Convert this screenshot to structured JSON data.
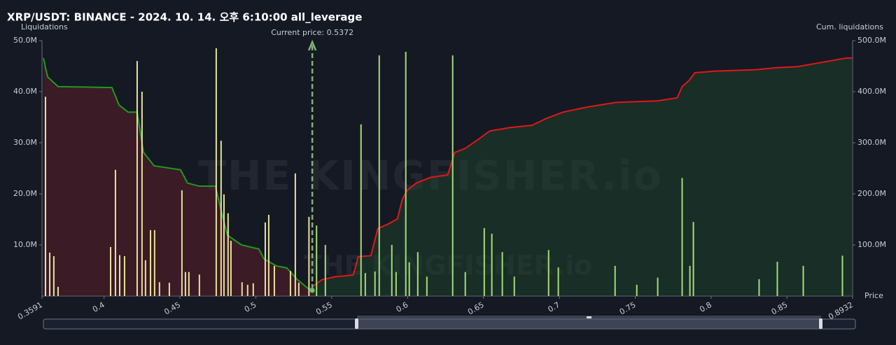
{
  "chart_data": {
    "type": "liquidation",
    "title": "XRP/USDT: BINANCE - 2024. 10. 14. 오후 6:10:00 all_leverage",
    "y_label": "Liquidations",
    "y2_label": "Cum. liquidations",
    "x_label": "Price",
    "watermark": "THE KINGFISHER.io",
    "current_price": {
      "value": 0.5372,
      "label": "Current price: 0.5372"
    },
    "xlim": [
      0.3591,
      0.8932
    ],
    "xticks": [
      0.3591,
      0.4,
      0.45,
      0.5,
      0.55,
      0.6,
      0.65,
      0.7,
      0.75,
      0.8,
      0.85,
      0.8932
    ],
    "ylim": [
      0,
      50000000
    ],
    "yticks": [
      {
        "value": 10000000,
        "label": "10.0M"
      },
      {
        "value": 20000000,
        "label": "20.0M"
      },
      {
        "value": 30000000,
        "label": "30.0M"
      },
      {
        "value": 40000000,
        "label": "40.0M"
      },
      {
        "value": 50000000,
        "label": "50.0M"
      }
    ],
    "y2lim": [
      0,
      500000000
    ],
    "y2ticks": [
      {
        "value": 100000000,
        "label": "100.0M"
      },
      {
        "value": 200000000,
        "label": "200.0M"
      },
      {
        "value": 300000000,
        "label": "300.0M"
      },
      {
        "value": 400000000,
        "label": "400.0M"
      },
      {
        "value": 500000000,
        "label": "500.0M"
      }
    ],
    "series": [
      {
        "kind": "bar",
        "color": "#e6e29c",
        "x": [
          0.3614,
          0.3642,
          0.3669,
          0.3697,
          0.4043,
          0.4075,
          0.4103,
          0.4135,
          0.4218,
          0.425,
          0.4273,
          0.4306,
          0.4333,
          0.4365,
          0.443,
          0.4513,
          0.4536,
          0.4559,
          0.4628,
          0.4739,
          0.4771,
          0.479,
          0.4817,
          0.4836,
          0.4909,
          0.4946,
          0.4983,
          0.5062,
          0.5085,
          0.5122,
          0.5228,
          0.526,
          0.5283,
          0.535
        ],
        "values": [
          39000000,
          8500000,
          7800000,
          1800000,
          9600000,
          24700000,
          8000000,
          7800000,
          46000000,
          40000000,
          7000000,
          12900000,
          12900000,
          2700000,
          2600000,
          20700000,
          4700000,
          4700000,
          4200000,
          48500000,
          30400000,
          19900000,
          16200000,
          10800000,
          2700000,
          2200000,
          2500000,
          14400000,
          15900000,
          5900000,
          4900000,
          24000000,
          2600000,
          15500000
        ]
      },
      {
        "kind": "bar",
        "color": "#a6dc7c",
        "x": [
          0.54,
          0.5458,
          0.5693,
          0.5721,
          0.5785,
          0.5813,
          0.5896,
          0.5924,
          0.5988,
          0.6011,
          0.6067,
          0.6127,
          0.6297,
          0.638,
          0.6505,
          0.6555,
          0.6624,
          0.6703,
          0.6929,
          0.6993,
          0.7367,
          0.751,
          0.7648,
          0.7809,
          0.786,
          0.7883,
          0.8316,
          0.8436,
          0.8607,
          0.8865
        ],
        "values": [
          13800000,
          10000000,
          33600000,
          4500000,
          4800000,
          47100000,
          10000000,
          4700000,
          47800000,
          6600000,
          8600000,
          3800000,
          47100000,
          4700000,
          13300000,
          12200000,
          8600000,
          3800000,
          9000000,
          5600000,
          5900000,
          2200000,
          3600000,
          23100000,
          5900000,
          14500000,
          3300000,
          6700000,
          5900000,
          7900000
        ]
      },
      {
        "kind": "line",
        "axis": "y2",
        "color": "#1f9a1f",
        "fill": "#6b1f2a",
        "x": [
          0.36,
          0.3628,
          0.3697,
          0.4052,
          0.4098,
          0.4158,
          0.4218,
          0.426,
          0.4329,
          0.4504,
          0.455,
          0.4628,
          0.4734,
          0.4771,
          0.4813,
          0.4905,
          0.502,
          0.5052,
          0.5135,
          0.5204,
          0.5274,
          0.5343,
          0.5372
        ],
        "values": [
          466000000,
          429000000,
          410000000,
          408000000,
          374000000,
          360000000,
          360000000,
          281000000,
          255000000,
          247000000,
          221000000,
          215000000,
          215000000,
          168000000,
          119000000,
          100000000,
          92000000,
          73000000,
          59000000,
          55000000,
          32000000,
          15000000,
          14000000
        ]
      },
      {
        "kind": "line",
        "axis": "y2",
        "color": "#e01818",
        "fill": "#1e4a2a",
        "x": [
          0.5372,
          0.5435,
          0.5527,
          0.5642,
          0.5675,
          0.5758,
          0.5804,
          0.5873,
          0.5933,
          0.5965,
          0.5997,
          0.6057,
          0.6149,
          0.6264,
          0.6311,
          0.638,
          0.6463,
          0.6541,
          0.668,
          0.6818,
          0.691,
          0.7025,
          0.7187,
          0.7371,
          0.7648,
          0.7777,
          0.7809,
          0.7855,
          0.7892,
          0.8016,
          0.8293,
          0.8431,
          0.857,
          0.8893,
          0.8932
        ],
        "values": [
          18000000,
          32000000,
          38000000,
          41000000,
          77000000,
          79000000,
          132000000,
          141000000,
          151000000,
          189000000,
          207000000,
          221000000,
          232000000,
          237000000,
          281000000,
          289000000,
          306000000,
          323000000,
          330000000,
          334000000,
          347000000,
          360000000,
          370000000,
          379000000,
          382000000,
          388000000,
          410000000,
          422000000,
          437000000,
          440000000,
          443000000,
          447000000,
          449000000,
          466000000,
          466000000
        ]
      }
    ]
  }
}
